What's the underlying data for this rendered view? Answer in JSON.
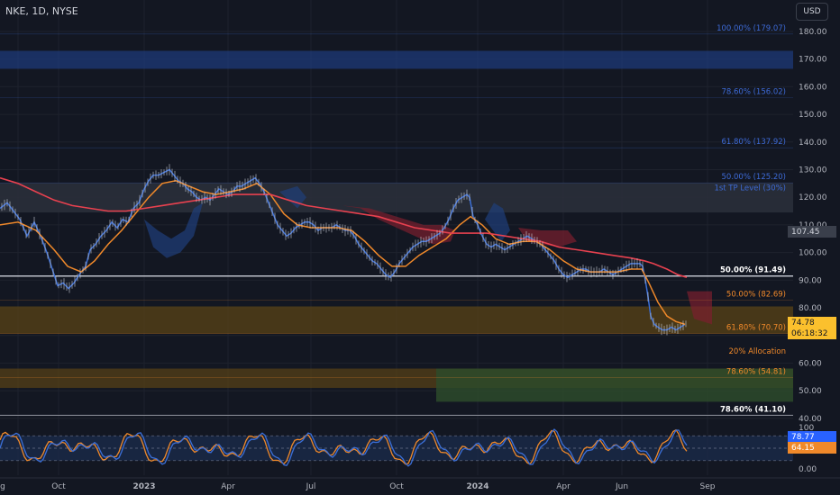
{
  "header": {
    "symbol": "NKE, 1D, NYSE",
    "currency": "USD"
  },
  "price_tags": {
    "tag_107": "107.45",
    "last_price": "74.78",
    "countdown": "06:18:32",
    "osc_k": "78.77",
    "osc_d": "64.15"
  },
  "colors": {
    "background": "#131722",
    "price_line": "#3b6fd8",
    "ema_fast": "#f0892a",
    "ma_slow": "#e8414f",
    "fib_blue": "#3d6ad6",
    "fib_orange": "#f0892a",
    "fib_white": "#ffffff",
    "oscillator_k": "#3b6fd8",
    "oscillator_d": "#f0892a"
  },
  "chart_data": {
    "type": "line",
    "y_axis_ticks": [
      "180.00",
      "170.00",
      "160.00",
      "150.00",
      "140.00",
      "130.00",
      "120.00",
      "110.00",
      "100.00",
      "90.00",
      "80.00",
      "70.00",
      "60.00",
      "50.00",
      "40.00"
    ],
    "ylim": [
      35,
      185
    ],
    "x_axis_ticks": [
      "Aug",
      "Oct",
      "2023",
      "Apr",
      "Jul",
      "Oct",
      "2024",
      "Apr",
      "Jun",
      "Sep"
    ],
    "oscillator": {
      "y_ticks": [
        "100",
        "50.00",
        "0.00"
      ],
      "ylim": [
        0,
        100
      ],
      "k_last": 78.77,
      "d_last": 64.15
    },
    "fib_levels": [
      {
        "label": "100.00% (179.07)",
        "price": 179.07,
        "color": "blue"
      },
      {
        "label": "78.60% (156.02)",
        "price": 156.02,
        "color": "blue"
      },
      {
        "label": "61.80% (137.92)",
        "price": 137.92,
        "color": "blue"
      },
      {
        "label": "50.00% (125.20)",
        "price": 125.2,
        "color": "blue"
      },
      {
        "label": "1st TP Level (30%)",
        "price": 122.9,
        "color": "blue"
      },
      {
        "label": "50.00% (91.49)",
        "price": 91.49,
        "color": "white"
      },
      {
        "label": "50.00% (82.69)",
        "price": 82.69,
        "color": "orange"
      },
      {
        "label": "61.80% (70.70)",
        "price": 70.7,
        "color": "orange"
      },
      {
        "label": "20% Allocation",
        "price": 67.3,
        "color": "orange"
      },
      {
        "label": "78.60% (54.81)",
        "price": 54.81,
        "color": "orange"
      },
      {
        "label": "78.60% (41.10)",
        "price": 41.1,
        "color": "white"
      }
    ],
    "series": [
      {
        "name": "",
        "values": [
          [
            0,
            116
          ],
          [
            8,
            118
          ],
          [
            15,
            115
          ],
          [
            22,
            112
          ],
          [
            30,
            106
          ],
          [
            38,
            111
          ],
          [
            45,
            106
          ],
          [
            52,
            100
          ],
          [
            58,
            94
          ],
          [
            64,
            88
          ],
          [
            70,
            89
          ],
          [
            76,
            87
          ],
          [
            82,
            89
          ],
          [
            88,
            92
          ],
          [
            95,
            95
          ],
          [
            100,
            101
          ],
          [
            106,
            103
          ],
          [
            112,
            106
          ],
          [
            118,
            108
          ],
          [
            124,
            111
          ],
          [
            130,
            109
          ],
          [
            136,
            112
          ],
          [
            142,
            111
          ],
          [
            148,
            116
          ],
          [
            154,
            118
          ],
          [
            160,
            123
          ],
          [
            165,
            126
          ],
          [
            170,
            128
          ],
          [
            176,
            128
          ],
          [
            182,
            129
          ],
          [
            188,
            130
          ],
          [
            193,
            128
          ],
          [
            198,
            126
          ],
          [
            203,
            125
          ],
          [
            208,
            123
          ],
          [
            213,
            122
          ],
          [
            218,
            120
          ],
          [
            223,
            119
          ],
          [
            228,
            120
          ],
          [
            233,
            119
          ],
          [
            238,
            121
          ],
          [
            243,
            123
          ],
          [
            248,
            122
          ],
          [
            253,
            121
          ],
          [
            258,
            122
          ],
          [
            263,
            124
          ],
          [
            268,
            124
          ],
          [
            273,
            125
          ],
          [
            278,
            126
          ],
          [
            283,
            127
          ],
          [
            288,
            125
          ],
          [
            293,
            122
          ],
          [
            298,
            118
          ],
          [
            303,
            114
          ],
          [
            308,
            110
          ],
          [
            313,
            108
          ],
          [
            318,
            106
          ],
          [
            323,
            107
          ],
          [
            328,
            109
          ],
          [
            333,
            110
          ],
          [
            338,
            111
          ],
          [
            343,
            111
          ],
          [
            348,
            110
          ],
          [
            353,
            108
          ],
          [
            358,
            109
          ],
          [
            363,
            109
          ],
          [
            368,
            109
          ],
          [
            373,
            110
          ],
          [
            378,
            109
          ],
          [
            383,
            108
          ],
          [
            388,
            108
          ],
          [
            393,
            106
          ],
          [
            398,
            103
          ],
          [
            403,
            101
          ],
          [
            408,
            99
          ],
          [
            413,
            97
          ],
          [
            418,
            96
          ],
          [
            423,
            94
          ],
          [
            428,
            92
          ],
          [
            433,
            91
          ],
          [
            438,
            93
          ],
          [
            443,
            96
          ],
          [
            448,
            98
          ],
          [
            453,
            100
          ],
          [
            458,
            102
          ],
          [
            463,
            103
          ],
          [
            468,
            104
          ],
          [
            473,
            104
          ],
          [
            478,
            105
          ],
          [
            483,
            106
          ],
          [
            488,
            107
          ],
          [
            493,
            109
          ],
          [
            498,
            112
          ],
          [
            503,
            116
          ],
          [
            508,
            119
          ],
          [
            513,
            120
          ],
          [
            518,
            121
          ],
          [
            521,
            120
          ],
          [
            525,
            113
          ],
          [
            530,
            110
          ],
          [
            535,
            106
          ],
          [
            540,
            103
          ],
          [
            545,
            102
          ],
          [
            550,
            103
          ],
          [
            555,
            102
          ],
          [
            560,
            101
          ],
          [
            565,
            102
          ],
          [
            570,
            103
          ],
          [
            575,
            104
          ],
          [
            580,
            105
          ],
          [
            585,
            106
          ],
          [
            590,
            105
          ],
          [
            595,
            104
          ],
          [
            600,
            103
          ],
          [
            605,
            101
          ],
          [
            610,
            99
          ],
          [
            615,
            97
          ],
          [
            620,
            94
          ],
          [
            625,
            92
          ],
          [
            630,
            91
          ],
          [
            635,
            92
          ],
          [
            640,
            93
          ],
          [
            645,
            94
          ],
          [
            650,
            94
          ],
          [
            655,
            93
          ],
          [
            660,
            93
          ],
          [
            665,
            93
          ],
          [
            670,
            94
          ],
          [
            675,
            93
          ],
          [
            680,
            92
          ],
          [
            685,
            93
          ],
          [
            690,
            94
          ],
          [
            695,
            95
          ],
          [
            700,
            96
          ],
          [
            705,
            96
          ],
          [
            710,
            96
          ],
          [
            713,
            95
          ],
          [
            716,
            90
          ],
          [
            719,
            84
          ],
          [
            722,
            77
          ],
          [
            726,
            74
          ],
          [
            730,
            73
          ],
          [
            735,
            72
          ],
          [
            740,
            72
          ],
          [
            745,
            73
          ],
          [
            750,
            72
          ],
          [
            755,
            73
          ],
          [
            760,
            74
          ]
        ]
      },
      {
        "name": "",
        "values": [
          [
            0,
            110
          ],
          [
            20,
            111
          ],
          [
            40,
            108
          ],
          [
            60,
            101
          ],
          [
            75,
            95
          ],
          [
            90,
            93
          ],
          [
            105,
            97
          ],
          [
            120,
            103
          ],
          [
            135,
            108
          ],
          [
            150,
            114
          ],
          [
            165,
            120
          ],
          [
            180,
            125
          ],
          [
            195,
            126
          ],
          [
            210,
            124
          ],
          [
            225,
            122
          ],
          [
            240,
            121
          ],
          [
            255,
            122
          ],
          [
            270,
            123
          ],
          [
            285,
            125
          ],
          [
            300,
            121
          ],
          [
            315,
            114
          ],
          [
            330,
            110
          ],
          [
            345,
            109
          ],
          [
            360,
            109
          ],
          [
            375,
            109
          ],
          [
            390,
            108
          ],
          [
            405,
            104
          ],
          [
            420,
            99
          ],
          [
            435,
            95
          ],
          [
            450,
            95
          ],
          [
            465,
            99
          ],
          [
            480,
            102
          ],
          [
            495,
            105
          ],
          [
            510,
            110
          ],
          [
            522,
            113
          ],
          [
            535,
            110
          ],
          [
            550,
            105
          ],
          [
            565,
            103
          ],
          [
            580,
            104
          ],
          [
            595,
            104
          ],
          [
            610,
            101
          ],
          [
            625,
            97
          ],
          [
            640,
            94
          ],
          [
            655,
            93
          ],
          [
            670,
            93
          ],
          [
            685,
            93
          ],
          [
            700,
            94
          ],
          [
            712,
            94
          ],
          [
            720,
            89
          ],
          [
            730,
            82
          ],
          [
            740,
            77
          ],
          [
            750,
            75
          ],
          [
            760,
            74
          ]
        ]
      },
      {
        "name": "",
        "values": [
          [
            0,
            127
          ],
          [
            20,
            125
          ],
          [
            40,
            122
          ],
          [
            60,
            119
          ],
          [
            80,
            117
          ],
          [
            100,
            116
          ],
          [
            120,
            115
          ],
          [
            140,
            115
          ],
          [
            160,
            116
          ],
          [
            180,
            117
          ],
          [
            200,
            118
          ],
          [
            220,
            119
          ],
          [
            240,
            120
          ],
          [
            260,
            121
          ],
          [
            280,
            121
          ],
          [
            300,
            121
          ],
          [
            320,
            119
          ],
          [
            340,
            117
          ],
          [
            360,
            116
          ],
          [
            380,
            115
          ],
          [
            400,
            114
          ],
          [
            420,
            113
          ],
          [
            440,
            111
          ],
          [
            460,
            109
          ],
          [
            480,
            108
          ],
          [
            500,
            107
          ],
          [
            520,
            107
          ],
          [
            540,
            107
          ],
          [
            560,
            106
          ],
          [
            580,
            105
          ],
          [
            600,
            104
          ],
          [
            620,
            102
          ],
          [
            640,
            101
          ],
          [
            660,
            100
          ],
          [
            680,
            99
          ],
          [
            700,
            98
          ],
          [
            715,
            97
          ],
          [
            725,
            96
          ],
          [
            740,
            94
          ],
          [
            752,
            92
          ],
          [
            762,
            91
          ]
        ]
      }
    ]
  }
}
